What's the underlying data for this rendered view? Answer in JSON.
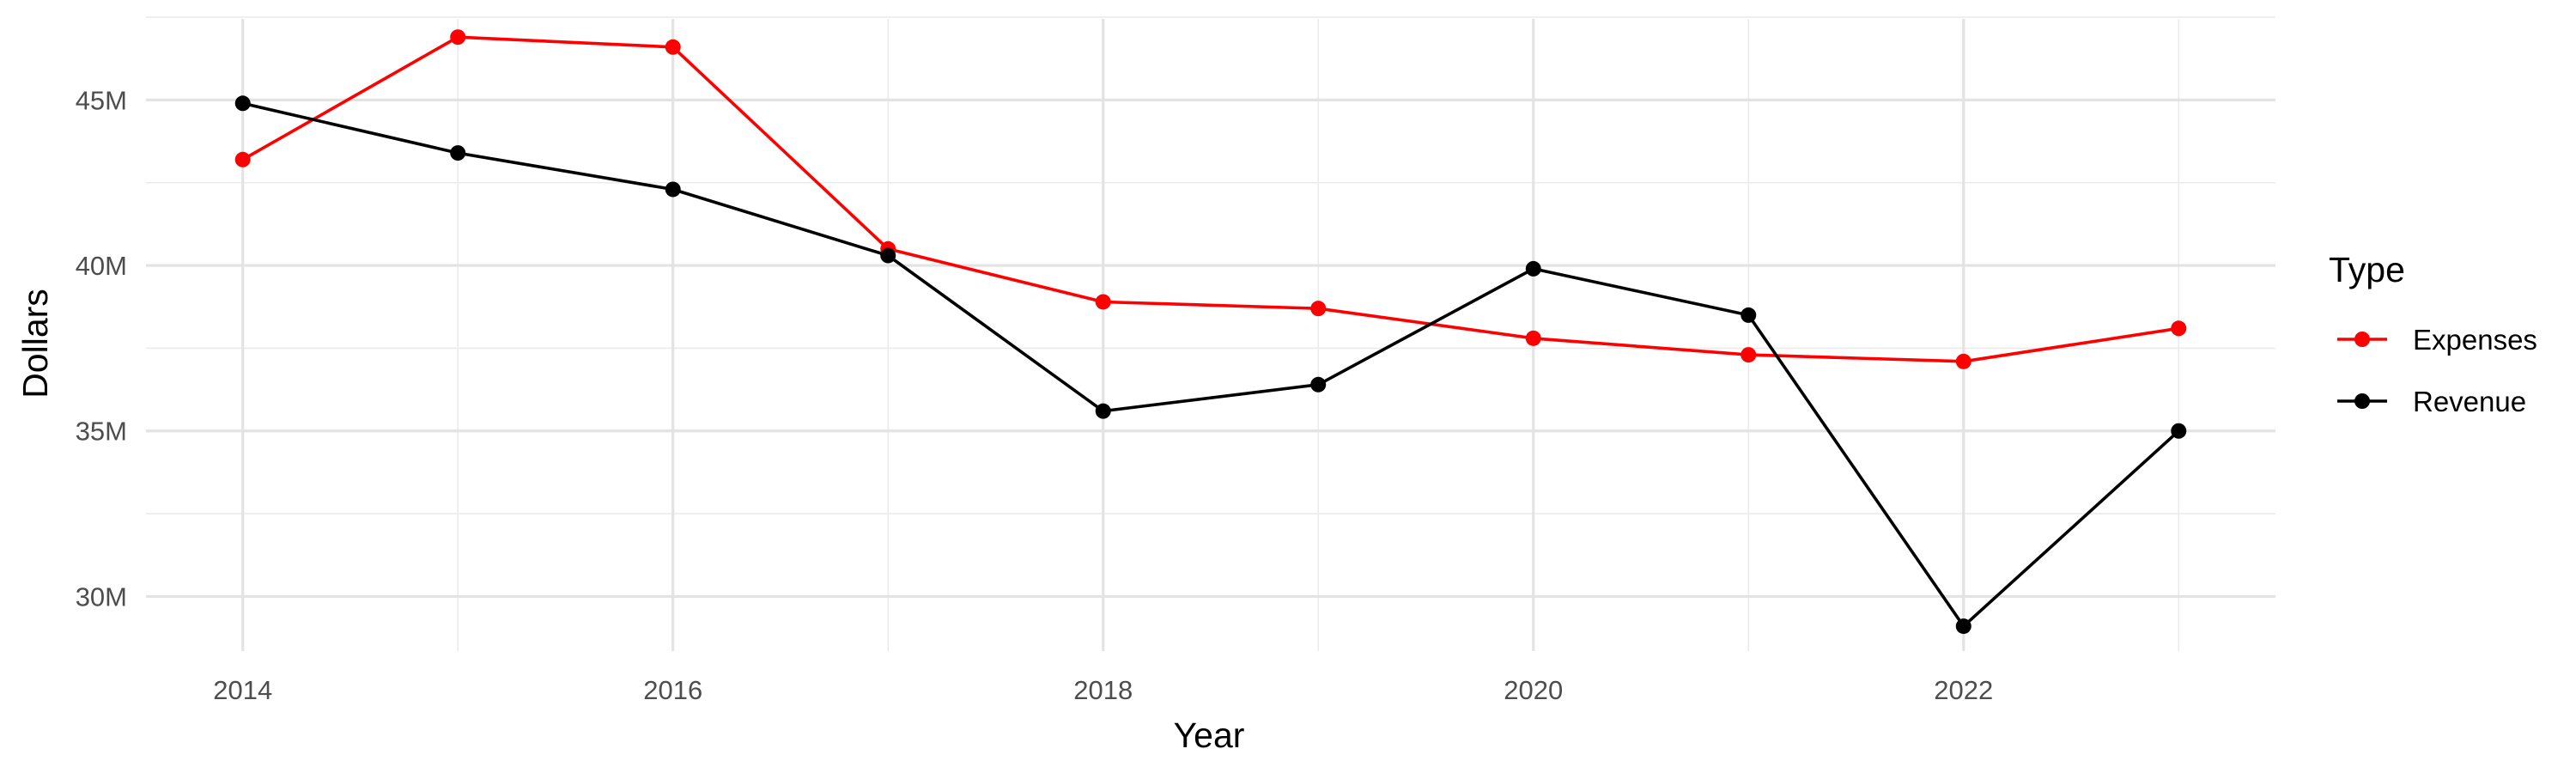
{
  "chart_data": {
    "type": "line",
    "title": "",
    "xlabel": "Year",
    "ylabel": "Dollars",
    "x": [
      2014,
      2015,
      2016,
      2017,
      2018,
      2019,
      2020,
      2021,
      2022,
      2023
    ],
    "xlim": [
      2013.55,
      2023.45
    ],
    "ylim": [
      28.35,
      47.45
    ],
    "y_unit": "M",
    "x_major_ticks": [
      2014,
      2016,
      2018,
      2020,
      2022
    ],
    "x_minor_ticks": [
      2015,
      2017,
      2019,
      2021,
      2023
    ],
    "y_major_ticks": [
      30,
      35,
      40,
      45
    ],
    "y_minor_ticks": [
      32.5,
      37.5,
      42.5,
      47.5
    ],
    "x_tick_labels": [
      "2014",
      "2016",
      "2018",
      "2020",
      "2022"
    ],
    "y_tick_labels": [
      "30M",
      "35M",
      "40M",
      "45M"
    ],
    "grid": true,
    "legend": {
      "title": "Type",
      "position": "right"
    },
    "series": [
      {
        "name": "Expenses",
        "color": "#ff0000",
        "values": [
          43.2,
          46.9,
          46.6,
          40.5,
          38.9,
          38.7,
          37.8,
          37.3,
          37.1,
          38.1
        ]
      },
      {
        "name": "Revenue",
        "color": "#000000",
        "values": [
          44.9,
          43.4,
          42.3,
          40.3,
          35.6,
          36.4,
          39.9,
          38.5,
          29.1,
          35.0
        ]
      }
    ]
  }
}
